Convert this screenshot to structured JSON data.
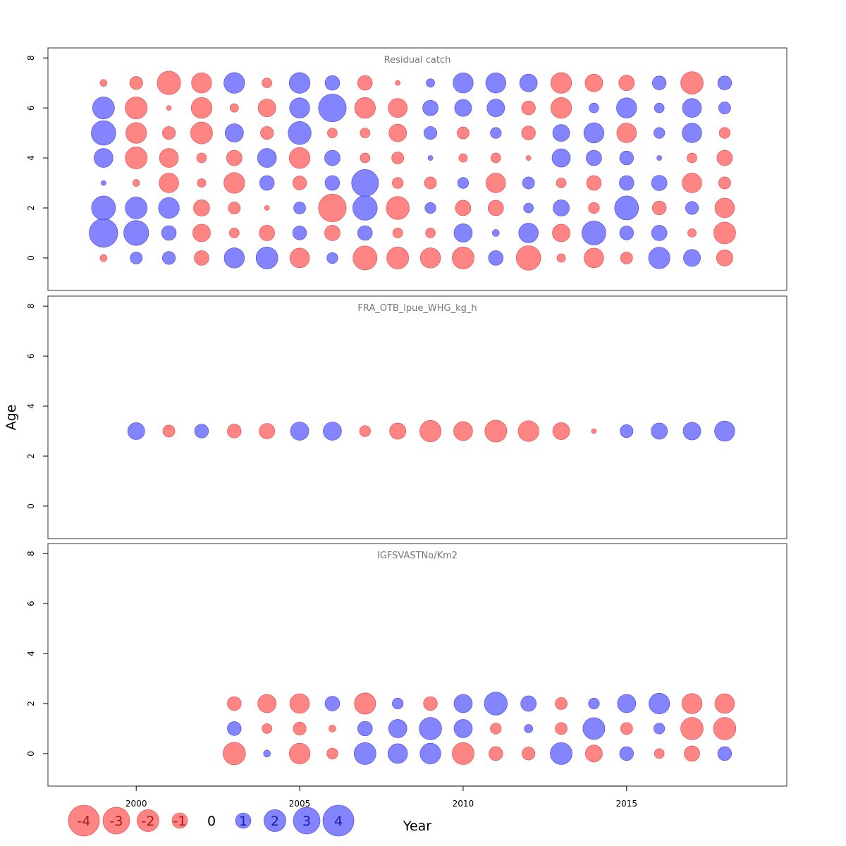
{
  "chart_data": {
    "type": "scatter",
    "subtype": "bubble-residuals",
    "xlabel": "Year",
    "ylabel": "Age",
    "xlim": [
      1997.3,
      2019.9
    ],
    "x_ticks": [
      2000,
      2005,
      2010,
      2015
    ],
    "y_ticks": [
      0,
      2,
      4,
      6,
      8
    ],
    "grid": false,
    "colors": {
      "positive": "#7777ff",
      "negative": "#ff7777"
    },
    "legend": {
      "placement": "bottom-left",
      "items": [
        {
          "label": "-4",
          "value": -4
        },
        {
          "label": "-3",
          "value": -3
        },
        {
          "label": "-2",
          "value": -2
        },
        {
          "label": "-1",
          "value": -1
        },
        {
          "label": "0",
          "value": 0
        },
        {
          "label": "1",
          "value": 1
        },
        {
          "label": "2",
          "value": 2
        },
        {
          "label": "3",
          "value": 3
        },
        {
          "label": "4",
          "value": 4
        }
      ]
    },
    "panels": [
      {
        "title": "Residual catch",
        "ylim": [
          -1.3,
          8.4
        ],
        "years": [
          1999,
          2000,
          2001,
          2002,
          2003,
          2004,
          2005,
          2006,
          2007,
          2008,
          2009,
          2010,
          2011,
          2012,
          2013,
          2014,
          2015,
          2016,
          2017,
          2018
        ],
        "ages": [
          0,
          1,
          2,
          3,
          4,
          5,
          6,
          7
        ],
        "residuals": [
          [
            -0.2,
            3.4,
            2.4,
            0.1,
            1.5,
            2.5,
            2.0,
            -0.2
          ],
          [
            0.6,
            2.6,
            2.0,
            -0.2,
            -2.0,
            -1.8,
            -2.0,
            -0.7
          ],
          [
            0.7,
            0.9,
            1.8,
            -1.6,
            -1.5,
            -0.7,
            -0.1,
            -2.3
          ],
          [
            -0.9,
            -1.3,
            -1.1,
            -0.3,
            -0.4,
            -2.0,
            -1.8,
            -1.7
          ],
          [
            1.7,
            -0.4,
            -0.6,
            -1.8,
            -1.0,
            1.4,
            -0.3,
            1.8
          ],
          [
            2.0,
            -1.0,
            -0.1,
            0.9,
            1.5,
            -0.7,
            -1.3,
            -0.4
          ],
          [
            -1.6,
            0.8,
            0.6,
            -0.8,
            -1.8,
            2.2,
            1.7,
            1.8
          ],
          [
            0.5,
            -1.0,
            -3.2,
            0.9,
            1.0,
            -0.4,
            3.2,
            0.9
          ],
          [
            -2.4,
            0.9,
            2.5,
            3.0,
            -0.4,
            -0.4,
            -1.8,
            -0.9
          ],
          [
            -2.0,
            -0.4,
            -2.2,
            -0.5,
            -0.6,
            -1.3,
            -1.5,
            -0.1
          ],
          [
            -1.7,
            -0.4,
            0.5,
            -0.6,
            0.1,
            0.7,
            1.0,
            0.3
          ],
          [
            -2.0,
            1.4,
            -1.0,
            0.5,
            -0.3,
            -0.6,
            1.2,
            1.7
          ],
          [
            0.9,
            0.2,
            -1.0,
            -1.6,
            -0.4,
            0.5,
            1.3,
            1.7
          ],
          [
            -2.5,
            1.6,
            0.4,
            0.6,
            -0.1,
            -0.8,
            -0.8,
            1.3
          ],
          [
            -0.3,
            -1.3,
            1.1,
            -0.4,
            1.4,
            1.2,
            -1.8,
            -1.8
          ],
          [
            -1.6,
            2.4,
            -0.5,
            -0.9,
            1.0,
            1.7,
            0.4,
            -1.3
          ],
          [
            -0.6,
            0.8,
            2.4,
            0.9,
            0.8,
            -1.6,
            1.7,
            -1.0
          ],
          [
            1.9,
            1.0,
            -0.8,
            1.0,
            0.1,
            0.5,
            0.4,
            0.8
          ],
          [
            1.2,
            -0.3,
            0.7,
            -1.6,
            -0.4,
            1.6,
            1.5,
            -2.1
          ],
          [
            -1.1,
            -2.0,
            -1.6,
            -0.6,
            -1.0,
            -0.5,
            0.6,
            0.8
          ]
        ]
      },
      {
        "title": "FRA_OTB_lpue_WHG_kg_h",
        "ylim": [
          -1.3,
          8.4
        ],
        "years": [
          2000,
          2001,
          2002,
          2003,
          2004,
          2005,
          2006,
          2007,
          2008,
          2009,
          2010,
          2011,
          2012,
          2013,
          2014,
          2015,
          2016,
          2017,
          2018
        ],
        "ages": [
          3
        ],
        "residuals": [
          [
            1.2
          ],
          [
            -0.6
          ],
          [
            0.8
          ],
          [
            -0.8
          ],
          [
            -1.0
          ],
          [
            1.4
          ],
          [
            1.4
          ],
          [
            -0.5
          ],
          [
            -1.1
          ],
          [
            -1.9
          ],
          [
            -1.5
          ],
          [
            -2.0
          ],
          [
            -1.8
          ],
          [
            -1.2
          ],
          [
            -0.1
          ],
          [
            0.7
          ],
          [
            1.1
          ],
          [
            1.3
          ],
          [
            1.7
          ]
        ]
      },
      {
        "title": "IGFSVASTNo/Km2",
        "ylim": [
          -1.3,
          8.4
        ],
        "years": [
          2003,
          2004,
          2005,
          2006,
          2007,
          2008,
          2009,
          2010,
          2011,
          2012,
          2013,
          2014,
          2015,
          2016,
          2017,
          2018
        ],
        "ages": [
          0,
          1,
          2
        ],
        "residuals": [
          [
            -2.1,
            0.8,
            -0.8
          ],
          [
            0.2,
            -0.4,
            -1.4
          ],
          [
            -1.8,
            -0.7,
            -1.6
          ],
          [
            -0.5,
            -0.2,
            0.9
          ],
          [
            2.0,
            0.9,
            -1.9
          ],
          [
            1.6,
            1.4,
            0.5
          ],
          [
            1.8,
            2.1,
            -0.8
          ],
          [
            -2.0,
            1.4,
            1.4
          ],
          [
            -0.8,
            -0.5,
            2.2
          ],
          [
            -0.7,
            0.3,
            1.0
          ],
          [
            2.0,
            -0.6,
            -0.6
          ],
          [
            -1.2,
            2.0,
            0.5
          ],
          [
            0.8,
            -0.6,
            1.4
          ],
          [
            -0.4,
            0.5,
            1.8
          ],
          [
            -1.0,
            -2.1,
            -1.7
          ],
          [
            0.8,
            -2.1,
            -1.6
          ]
        ]
      }
    ]
  }
}
